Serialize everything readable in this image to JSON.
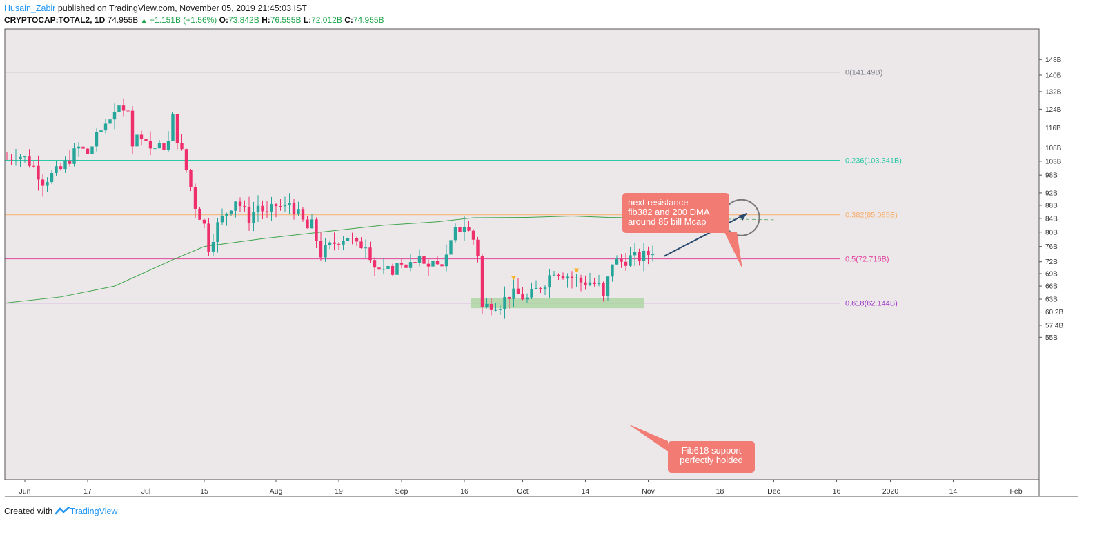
{
  "header": {
    "author": "Husain_Zabir",
    "published": "published on TradingView.com, November 05, 2019 21:45:03 IST",
    "symbol": "CRYPTOCAP:TOTAL2, 1D",
    "last": "74.955B",
    "change": "+1.151B (+1.56%)",
    "open_label": "O:",
    "open": "73.842B",
    "high_label": "H:",
    "high": "76.555B",
    "low_label": "L:",
    "low": "72.012B",
    "close_label": "C:",
    "close": "74.955B"
  },
  "footer": {
    "created_with": "Created with",
    "brand": "TradingView"
  },
  "colors": {
    "up": "#26a69a",
    "down": "#ef2f6b",
    "background": "#ece8ea",
    "fib_0": "#787b86",
    "fib_236": "#2bc8a5",
    "fib_382": "#f7ae6b",
    "fib_5": "#e0489e",
    "fib_618": "#9c36c5",
    "ma200": "#3fa44a",
    "support_zone": "#a7d39b",
    "arrow": "#2b4a6e"
  },
  "annotations": {
    "resistance_note": "next resistance\nfib382 and 200 DMA\naround 85 bill Mcap",
    "support_note": "Fib618 support\nperfectly holded"
  },
  "chart_data": {
    "type": "candlestick",
    "ylabel": "",
    "ylim": [
      54,
      149
    ],
    "y_scale": "log",
    "y_ticks": [
      "148B",
      "140B",
      "132B",
      "124B",
      "116B",
      "108B",
      "103B",
      "98B",
      "92B",
      "88B",
      "84B",
      "80B",
      "76B",
      "72B",
      "69B",
      "66B",
      "63B",
      "60.2B",
      "57.4B",
      "55B"
    ],
    "y_tick_values": [
      148,
      140,
      132,
      124,
      116,
      108,
      103,
      98,
      92,
      88,
      84,
      80,
      76,
      72,
      69,
      66,
      63,
      60.2,
      57.4,
      55
    ],
    "x_ticks": [
      "Jun",
      "17",
      "Jul",
      "15",
      "Aug",
      "19",
      "Sep",
      "16",
      "Oct",
      "14",
      "Nov",
      "18",
      "Dec",
      "16",
      "2020",
      "14",
      "Feb"
    ],
    "fib_levels": [
      {
        "label": "0(141.49B)",
        "value": 141.49
      },
      {
        "label": "0.236(103.341B)",
        "value": 103.341
      },
      {
        "label": "0.382(85.085B)",
        "value": 85.085
      },
      {
        "label": "0.5(72.716B)",
        "value": 72.716
      },
      {
        "label": "0.618(62.144B)",
        "value": 62.144
      }
    ],
    "support_zone": {
      "low": 61.0,
      "high": 63.3
    },
    "projection_target": 85.5,
    "candle_close_path": [
      [
        0,
        104
      ],
      [
        2,
        106
      ],
      [
        4,
        104
      ],
      [
        6,
        101
      ],
      [
        8,
        96
      ],
      [
        10,
        98
      ],
      [
        12,
        100
      ],
      [
        14,
        104
      ],
      [
        16,
        108
      ],
      [
        18,
        106
      ],
      [
        20,
        112
      ],
      [
        22,
        118
      ],
      [
        24,
        124
      ],
      [
        26,
        122
      ],
      [
        27,
        126
      ],
      [
        28,
        110
      ],
      [
        30,
        114
      ],
      [
        32,
        108
      ],
      [
        34,
        108
      ],
      [
        36,
        110
      ],
      [
        37,
        120
      ],
      [
        38,
        112
      ],
      [
        40,
        100
      ],
      [
        42,
        88
      ],
      [
        44,
        82
      ],
      [
        45,
        76
      ],
      [
        47,
        82
      ],
      [
        49,
        86
      ],
      [
        51,
        90
      ],
      [
        52,
        88
      ],
      [
        54,
        84
      ],
      [
        56,
        88
      ],
      [
        58,
        85
      ],
      [
        60,
        88
      ],
      [
        62,
        87
      ],
      [
        63,
        89
      ],
      [
        65,
        85
      ],
      [
        67,
        81
      ],
      [
        68,
        82
      ],
      [
        70,
        74
      ],
      [
        72,
        76
      ],
      [
        74,
        78
      ],
      [
        76,
        79
      ],
      [
        78,
        76
      ],
      [
        80,
        77
      ],
      [
        82,
        71
      ],
      [
        84,
        69
      ],
      [
        86,
        70
      ],
      [
        88,
        72
      ],
      [
        90,
        71
      ],
      [
        92,
        72
      ],
      [
        94,
        72
      ],
      [
        96,
        71
      ],
      [
        98,
        73
      ],
      [
        100,
        80
      ],
      [
        102,
        82
      ],
      [
        104,
        78
      ],
      [
        105,
        74
      ],
      [
        106,
        61
      ],
      [
        108,
        62
      ],
      [
        110,
        62
      ],
      [
        112,
        64
      ],
      [
        114,
        64
      ],
      [
        116,
        63
      ],
      [
        118,
        65
      ],
      [
        120,
        67
      ],
      [
        122,
        70
      ],
      [
        124,
        69
      ],
      [
        126,
        68
      ],
      [
        128,
        67
      ],
      [
        130,
        67
      ],
      [
        132,
        66
      ],
      [
        133,
        63
      ],
      [
        135,
        72
      ],
      [
        137,
        72
      ],
      [
        139,
        73
      ],
      [
        141,
        73
      ],
      [
        143,
        74
      ],
      [
        144,
        75
      ]
    ],
    "ma200_path": [
      [
        0,
        62.2
      ],
      [
        12,
        63.5
      ],
      [
        24,
        66
      ],
      [
        36,
        72
      ],
      [
        44,
        76
      ],
      [
        56,
        78
      ],
      [
        70,
        80
      ],
      [
        84,
        82
      ],
      [
        96,
        83
      ],
      [
        104,
        84.2
      ],
      [
        116,
        84.3
      ],
      [
        126,
        84.7
      ],
      [
        134,
        84.3
      ],
      [
        144,
        84.1
      ]
    ],
    "ma200_projection": [
      [
        144,
        84.1
      ],
      [
        171,
        83.6
      ]
    ],
    "markers": [
      {
        "day": 113,
        "value": 67.8
      },
      {
        "day": 127,
        "value": 69.6
      }
    ]
  }
}
